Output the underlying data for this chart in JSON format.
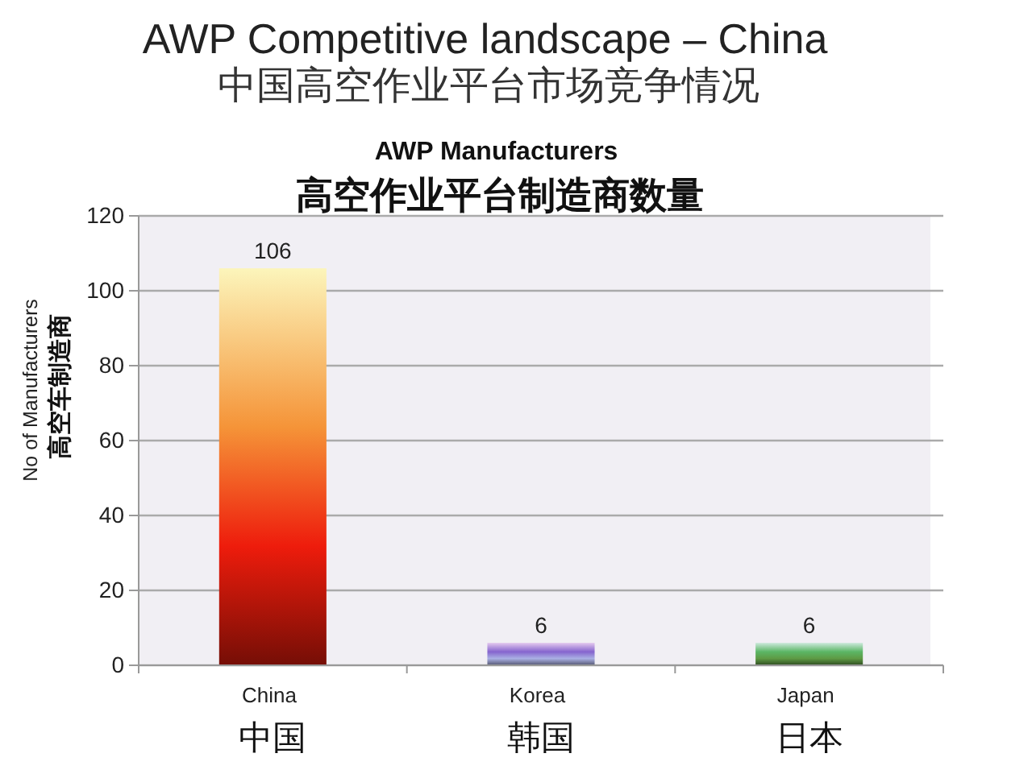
{
  "chart_data": {
    "type": "bar",
    "title": "AWP Competitive landscape – China\n中国高空作业平台市场竞争情况",
    "subtitle": "AWP Manufacturers\n高空作业平台制造商数量",
    "ylabel": "No of Manufacturers\n高空车制造商",
    "categories": [
      "China\n中国",
      "Korea\n韩国",
      "Japan\n日本"
    ],
    "values": [
      106,
      6,
      6
    ],
    "colors": [
      "#ee1c0c",
      "#aab0e4",
      "#5e9a44"
    ],
    "ylim": [
      0,
      120
    ],
    "yticks": [
      0,
      20,
      40,
      60,
      80,
      100,
      120
    ],
    "grid": "y",
    "data_labels": true
  }
}
